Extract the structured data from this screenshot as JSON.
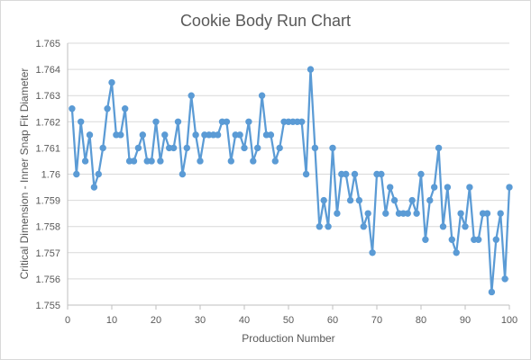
{
  "chart_data": {
    "type": "line",
    "title": "Cookie Body Run Chart",
    "xlabel": "Production Number",
    "ylabel": "Critical Dimension - Inner Snap Fit Diameter",
    "xlim": [
      0,
      100
    ],
    "ylim": [
      1.755,
      1.765
    ],
    "x_ticks": [
      "0",
      "10",
      "20",
      "30",
      "40",
      "50",
      "60",
      "70",
      "80",
      "90",
      "100"
    ],
    "y_ticks": [
      "1.755",
      "1.756",
      "1.757",
      "1.758",
      "1.759",
      "1.76",
      "1.761",
      "1.762",
      "1.763",
      "1.764",
      "1.765"
    ],
    "grid": true,
    "markers": true,
    "series_color": "#5b9bd5",
    "x": [
      1,
      2,
      3,
      4,
      5,
      6,
      7,
      8,
      9,
      10,
      11,
      12,
      13,
      14,
      15,
      16,
      17,
      18,
      19,
      20,
      21,
      22,
      23,
      24,
      25,
      26,
      27,
      28,
      29,
      30,
      31,
      32,
      33,
      34,
      35,
      36,
      37,
      38,
      39,
      40,
      41,
      42,
      43,
      44,
      45,
      46,
      47,
      48,
      49,
      50,
      51,
      52,
      53,
      54,
      55,
      56,
      57,
      58,
      59,
      60,
      61,
      62,
      63,
      64,
      65,
      66,
      67,
      68,
      69,
      70,
      71,
      72,
      73,
      74,
      75,
      76,
      77,
      78,
      79,
      80,
      81,
      82,
      83,
      84,
      85,
      86,
      87,
      88,
      89,
      90,
      91,
      92,
      93,
      94,
      95,
      96,
      97,
      98,
      99,
      100
    ],
    "values": [
      1.7625,
      1.76,
      1.762,
      1.7605,
      1.7615,
      1.7595,
      1.76,
      1.761,
      1.7625,
      1.7635,
      1.7615,
      1.7615,
      1.7625,
      1.7605,
      1.7605,
      1.761,
      1.7615,
      1.7605,
      1.7605,
      1.762,
      1.7605,
      1.7615,
      1.761,
      1.761,
      1.762,
      1.76,
      1.761,
      1.763,
      1.7615,
      1.7605,
      1.7615,
      1.7615,
      1.7615,
      1.7615,
      1.762,
      1.762,
      1.7605,
      1.7615,
      1.7615,
      1.761,
      1.762,
      1.7605,
      1.761,
      1.763,
      1.7615,
      1.7615,
      1.7605,
      1.761,
      1.762,
      1.762,
      1.762,
      1.762,
      1.762,
      1.76,
      1.764,
      1.761,
      1.758,
      1.759,
      1.758,
      1.761,
      1.7585,
      1.76,
      1.76,
      1.759,
      1.76,
      1.759,
      1.758,
      1.7585,
      1.757,
      1.76,
      1.76,
      1.7585,
      1.7595,
      1.759,
      1.7585,
      1.7585,
      1.7585,
      1.759,
      1.7585,
      1.76,
      1.7575,
      1.759,
      1.7595,
      1.761,
      1.758,
      1.7595,
      1.7575,
      1.757,
      1.7585,
      1.758,
      1.7595,
      1.7575,
      1.7575,
      1.7585,
      1.7585,
      1.7555,
      1.7575,
      1.7585,
      1.756,
      1.7595
    ]
  }
}
